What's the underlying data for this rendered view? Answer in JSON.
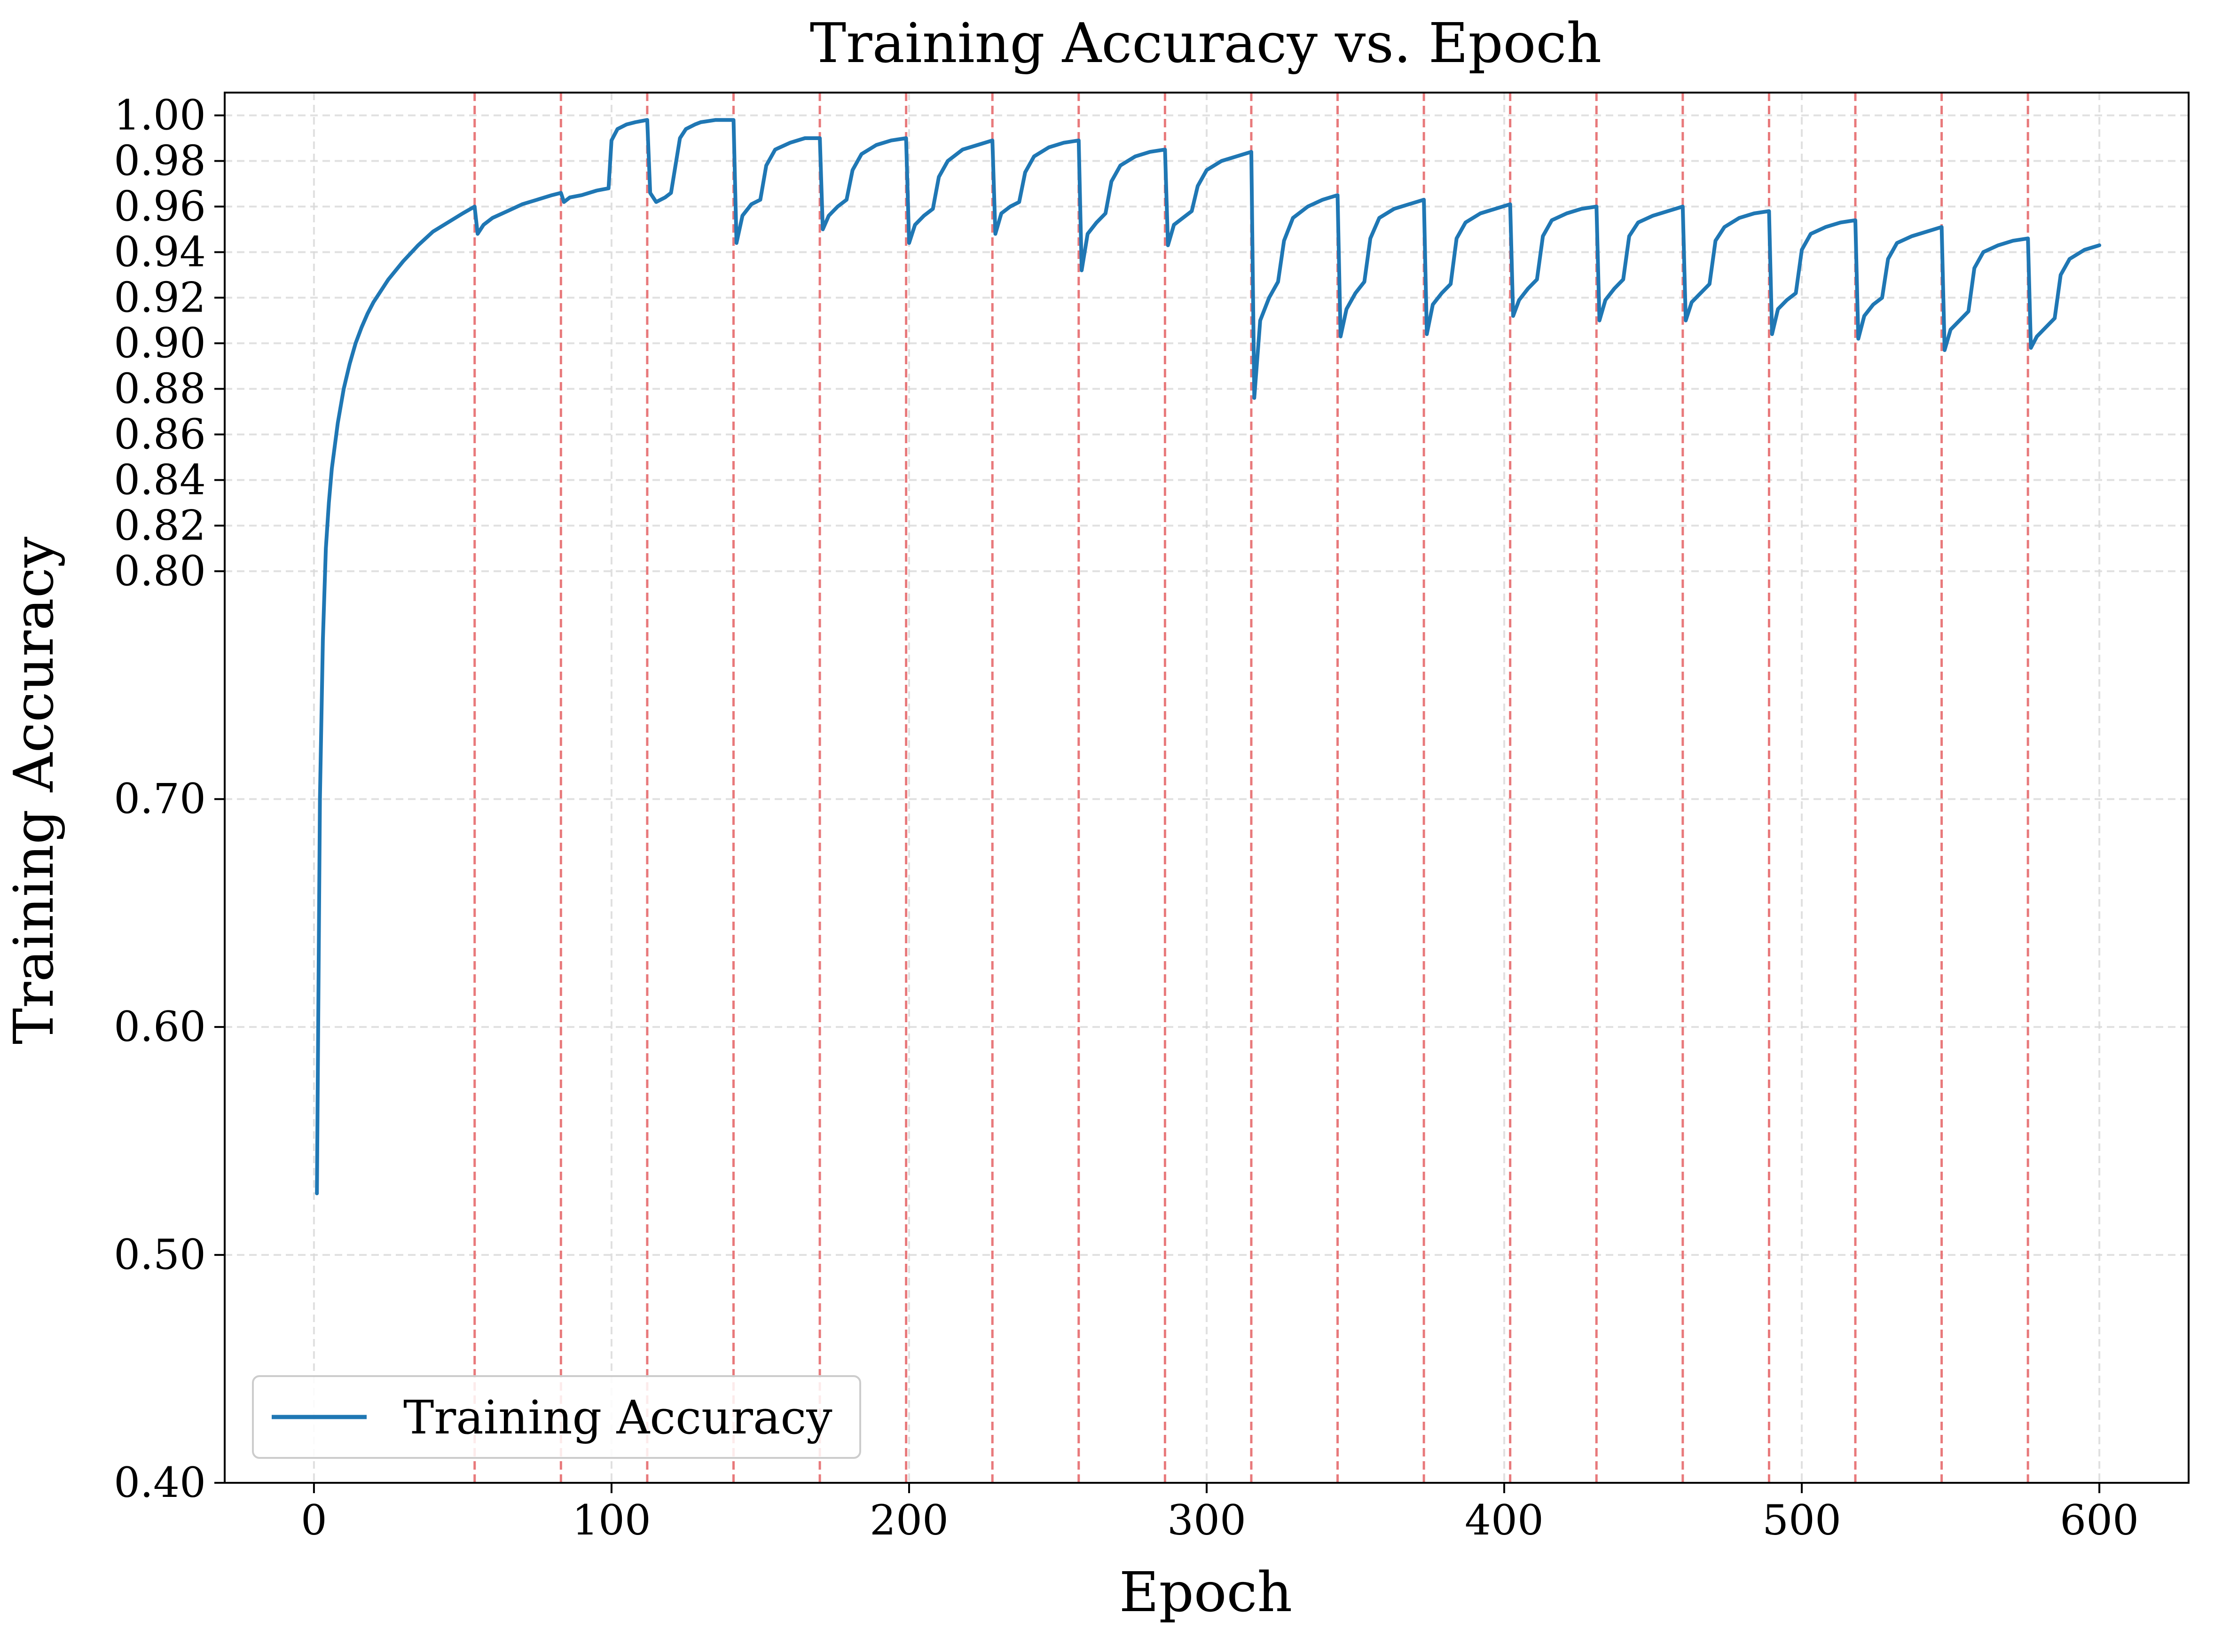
{
  "chart_data": {
    "type": "line",
    "title": "Training Accuracy vs. Epoch",
    "xlabel": "Epoch",
    "ylabel": "Training Accuracy",
    "xlim": [
      -30,
      630
    ],
    "ylim": [
      0.4,
      1.01
    ],
    "x_ticks": [
      0,
      100,
      200,
      300,
      400,
      500,
      600
    ],
    "x_tick_labels": [
      "0",
      "100",
      "200",
      "300",
      "400",
      "500",
      "600"
    ],
    "y_ticks": [
      0.4,
      0.5,
      0.6,
      0.7,
      0.8,
      0.82,
      0.84,
      0.86,
      0.88,
      0.9,
      0.92,
      0.94,
      0.96,
      0.98,
      1.0
    ],
    "y_tick_labels": [
      "0.40",
      "0.50",
      "0.60",
      "0.70",
      "0.80",
      "0.82",
      "0.84",
      "0.86",
      "0.88",
      "0.90",
      "0.92",
      "0.94",
      "0.96",
      "0.98",
      "1.00"
    ],
    "grid": true,
    "legend": {
      "placement": "lower-left",
      "entries": [
        "Training Accuracy"
      ]
    },
    "vertical_markers": [
      54,
      83,
      112,
      141,
      170,
      199,
      228,
      257,
      286,
      315,
      344,
      373,
      402,
      431,
      460,
      489,
      518,
      547,
      576
    ],
    "colors": {
      "series": "#1f77b4",
      "markers": "#e8797b",
      "grid": "#d9d9d9"
    },
    "series": [
      {
        "name": "Training Accuracy",
        "x": [
          1,
          2,
          3,
          4,
          5,
          6,
          8,
          10,
          12,
          14,
          16,
          18,
          20,
          25,
          30,
          35,
          40,
          45,
          50,
          54,
          55,
          57,
          60,
          65,
          70,
          75,
          80,
          83,
          84,
          86,
          90,
          95,
          99,
          100,
          102,
          105,
          108,
          112,
          113,
          115,
          118,
          120,
          123,
          125,
          128,
          130,
          135,
          141,
          142,
          144,
          147,
          150,
          152,
          155,
          160,
          165,
          170,
          171,
          173,
          176,
          179,
          181,
          184,
          189,
          194,
          199,
          200,
          202,
          205,
          208,
          210,
          213,
          218,
          223,
          228,
          229,
          231,
          234,
          237,
          239,
          242,
          247,
          252,
          257,
          258,
          260,
          263,
          266,
          268,
          271,
          276,
          281,
          286,
          287,
          289,
          292,
          295,
          297,
          300,
          305,
          310,
          315,
          316,
          318,
          321,
          324,
          326,
          329,
          334,
          339,
          344,
          345,
          347,
          350,
          353,
          355,
          358,
          363,
          368,
          373,
          374,
          376,
          379,
          382,
          384,
          387,
          392,
          397,
          402,
          403,
          405,
          408,
          411,
          413,
          416,
          421,
          426,
          431,
          432,
          434,
          437,
          440,
          442,
          445,
          450,
          455,
          460,
          461,
          463,
          466,
          469,
          471,
          474,
          479,
          484,
          489,
          490,
          492,
          495,
          498,
          500,
          503,
          508,
          513,
          518,
          519,
          521,
          524,
          527,
          529,
          532,
          537,
          542,
          547,
          548,
          550,
          553,
          556,
          558,
          561,
          566,
          571,
          576,
          577,
          579,
          582,
          585,
          587,
          590,
          595,
          600
        ],
        "y": [
          0.527,
          0.7,
          0.77,
          0.81,
          0.83,
          0.845,
          0.865,
          0.88,
          0.891,
          0.9,
          0.907,
          0.913,
          0.918,
          0.928,
          0.936,
          0.943,
          0.949,
          0.953,
          0.957,
          0.96,
          0.948,
          0.952,
          0.955,
          0.958,
          0.961,
          0.963,
          0.965,
          0.966,
          0.962,
          0.964,
          0.965,
          0.967,
          0.968,
          0.989,
          0.994,
          0.996,
          0.997,
          0.998,
          0.966,
          0.962,
          0.964,
          0.966,
          0.99,
          0.994,
          0.996,
          0.997,
          0.998,
          0.998,
          0.944,
          0.956,
          0.961,
          0.963,
          0.978,
          0.985,
          0.988,
          0.99,
          0.99,
          0.95,
          0.956,
          0.96,
          0.963,
          0.976,
          0.983,
          0.987,
          0.989,
          0.99,
          0.944,
          0.952,
          0.956,
          0.959,
          0.973,
          0.98,
          0.985,
          0.987,
          0.989,
          0.948,
          0.957,
          0.96,
          0.962,
          0.975,
          0.982,
          0.986,
          0.988,
          0.989,
          0.932,
          0.948,
          0.953,
          0.957,
          0.971,
          0.978,
          0.982,
          0.984,
          0.985,
          0.943,
          0.952,
          0.955,
          0.958,
          0.969,
          0.976,
          0.98,
          0.982,
          0.984,
          0.876,
          0.91,
          0.92,
          0.927,
          0.945,
          0.955,
          0.96,
          0.963,
          0.965,
          0.903,
          0.915,
          0.922,
          0.927,
          0.946,
          0.955,
          0.959,
          0.961,
          0.963,
          0.904,
          0.917,
          0.922,
          0.926,
          0.946,
          0.953,
          0.957,
          0.959,
          0.961,
          0.912,
          0.919,
          0.924,
          0.928,
          0.947,
          0.954,
          0.957,
          0.959,
          0.96,
          0.91,
          0.919,
          0.924,
          0.928,
          0.947,
          0.953,
          0.956,
          0.958,
          0.96,
          0.91,
          0.918,
          0.922,
          0.926,
          0.945,
          0.951,
          0.955,
          0.957,
          0.958,
          0.904,
          0.915,
          0.919,
          0.922,
          0.941,
          0.948,
          0.951,
          0.953,
          0.954,
          0.902,
          0.912,
          0.917,
          0.92,
          0.937,
          0.944,
          0.947,
          0.949,
          0.951,
          0.897,
          0.906,
          0.91,
          0.914,
          0.933,
          0.94,
          0.943,
          0.945,
          0.946,
          0.898,
          0.903,
          0.907,
          0.911,
          0.93,
          0.937,
          0.941,
          0.943
        ]
      }
    ]
  }
}
